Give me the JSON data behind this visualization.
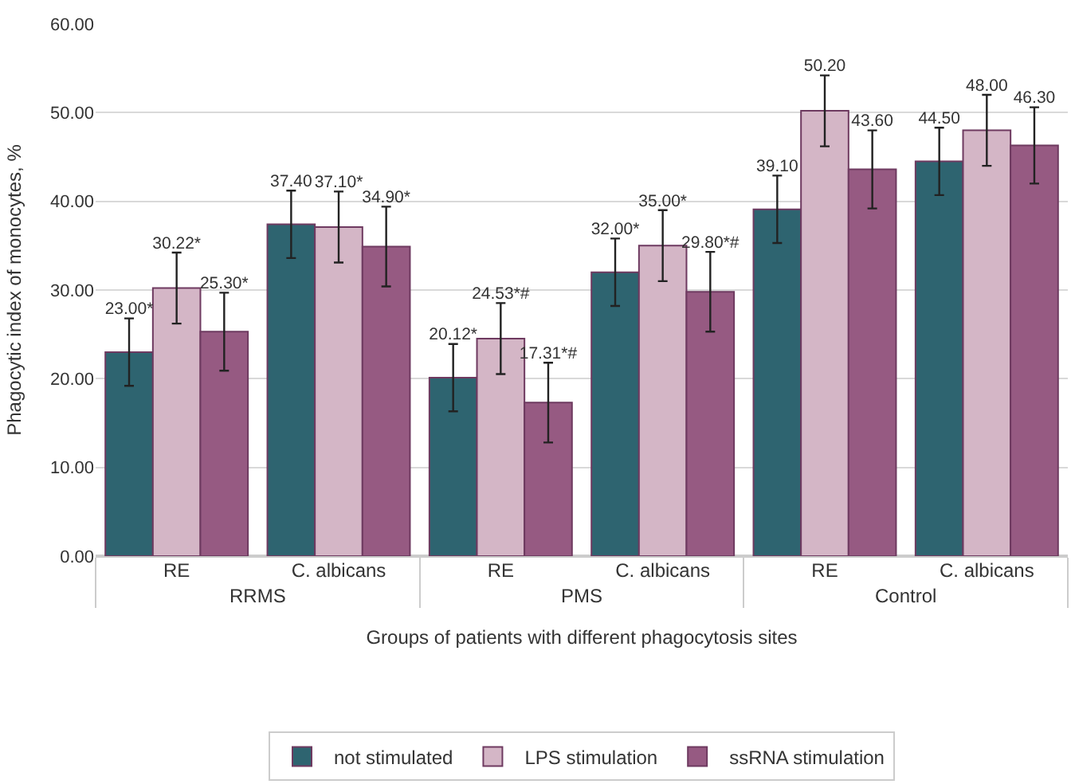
{
  "chart_data": {
    "type": "bar",
    "xlabel": "Groups of patients with different phagocytosis sites",
    "ylabel": "Phagocytic index of monocytes, %",
    "categories": [
      "RE",
      "C. albicans",
      "RE",
      "C. albicans",
      "RE",
      "C. albicans"
    ],
    "annotations": [
      "RRMS",
      "PMS",
      "Control"
    ],
    "series": [
      {
        "name": "not stimulated",
        "color": "#2e6470",
        "values": [
          23.0,
          37.4,
          20.12,
          32.0,
          39.1,
          44.5
        ],
        "errors": [
          3.8,
          3.8,
          3.8,
          3.8,
          3.8,
          3.8
        ],
        "value_labels": [
          "23.00*",
          "37.40",
          "20.12*",
          "32.00*",
          "39.10",
          "44.50"
        ]
      },
      {
        "name": "LPS stimulation",
        "color": "#d4b6c6",
        "values": [
          30.22,
          37.1,
          24.53,
          35.0,
          50.2,
          48.0
        ],
        "errors": [
          4.0,
          4.0,
          4.0,
          4.0,
          4.0,
          4.0
        ],
        "value_labels": [
          "30.22*",
          "37.10*",
          "24.53*#",
          "35.00*",
          "50.20",
          "48.00"
        ]
      },
      {
        "name": "ssRNA stimulation",
        "color": "#965a82",
        "values": [
          25.3,
          34.9,
          17.31,
          29.8,
          43.6,
          46.3
        ],
        "errors": [
          4.4,
          4.5,
          4.5,
          4.5,
          4.4,
          4.3
        ],
        "value_labels": [
          "25.30*",
          "34.90*",
          "17.31*#",
          "29.80*#",
          "43.60",
          "46.30"
        ]
      }
    ],
    "ylim": [
      0,
      60
    ],
    "yticks": [
      {
        "value": 0,
        "label": "0.00"
      },
      {
        "value": 10,
        "label": "10.00"
      },
      {
        "value": 20,
        "label": "20.00"
      },
      {
        "value": 30,
        "label": "30.00"
      },
      {
        "value": 40,
        "label": "40.00"
      },
      {
        "value": 50,
        "label": "50.00"
      },
      {
        "value": 60,
        "label": "60.00"
      }
    ],
    "grid": "y",
    "legend": "bottom"
  }
}
